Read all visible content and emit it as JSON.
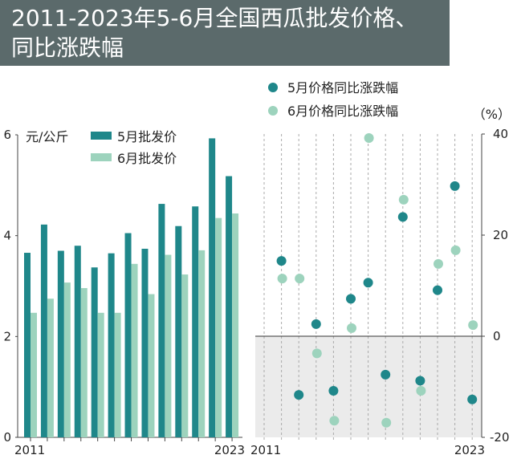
{
  "title_line1": "2011-2023年5-6月全国西瓜批发价格、",
  "title_line2": "同比涨跌幅",
  "colors": {
    "may": "#1f878a",
    "june": "#9dd3bd",
    "banner": "#5b6a6b",
    "negative_zone": "#ebebeb"
  },
  "chart_data": [
    {
      "type": "bar",
      "unit_label": "元/公斤",
      "categories": [
        "2011",
        "2012",
        "2013",
        "2014",
        "2015",
        "2016",
        "2017",
        "2018",
        "2019",
        "2020",
        "2021",
        "2022",
        "2023"
      ],
      "x_tick_labels": [
        "2011",
        "2023"
      ],
      "y_ticks": [
        0,
        2,
        4,
        6
      ],
      "ylim": [
        0,
        6
      ],
      "legend_placement": "top",
      "series": [
        {
          "name": "5月批发价",
          "values": [
            3.66,
            4.22,
            3.7,
            3.8,
            3.37,
            3.65,
            4.05,
            3.74,
            4.63,
            4.19,
            4.58,
            5.93,
            5.18
          ]
        },
        {
          "name": "6月批发价",
          "values": [
            2.47,
            2.75,
            3.07,
            2.96,
            2.47,
            2.47,
            3.44,
            2.84,
            3.62,
            3.23,
            3.71,
            4.35,
            4.44
          ]
        }
      ]
    },
    {
      "type": "scatter",
      "unit_label": "（%）",
      "categories": [
        "2011",
        "2012",
        "2013",
        "2014",
        "2015",
        "2016",
        "2017",
        "2018",
        "2019",
        "2020",
        "2021",
        "2022",
        "2023"
      ],
      "x_tick_labels": [
        "2011",
        "2023"
      ],
      "y_ticks": [
        40,
        20,
        0,
        -20
      ],
      "ylim": [
        -20,
        40
      ],
      "legend_placement": "top",
      "series": [
        {
          "name": "5月价格同比涨跌幅",
          "values": [
            null,
            14.9,
            -11.6,
            2.4,
            -10.8,
            7.4,
            10.6,
            -7.6,
            23.6,
            -8.8,
            9.1,
            29.7,
            -12.5
          ]
        },
        {
          "name": "6月价格同比涨跌幅",
          "values": [
            null,
            11.4,
            11.4,
            -3.4,
            -16.7,
            1.6,
            39.2,
            -17.1,
            27.0,
            -10.8,
            14.3,
            17.0,
            2.2
          ]
        }
      ]
    }
  ]
}
